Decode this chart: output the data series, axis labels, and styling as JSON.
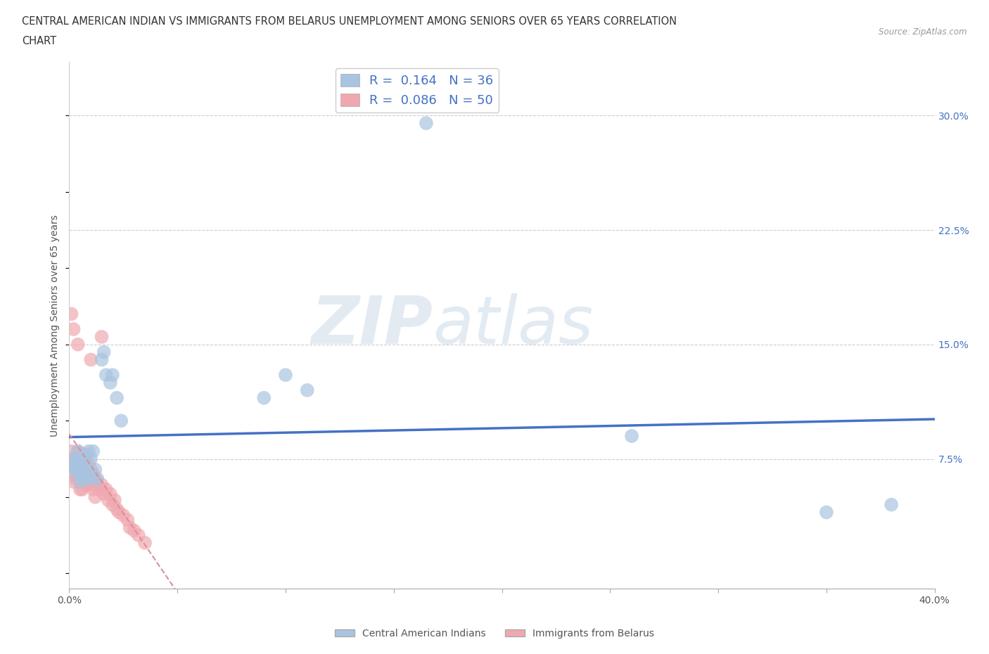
{
  "title_line1": "CENTRAL AMERICAN INDIAN VS IMMIGRANTS FROM BELARUS UNEMPLOYMENT AMONG SENIORS OVER 65 YEARS CORRELATION",
  "title_line2": "CHART",
  "source": "Source: ZipAtlas.com",
  "ylabel": "Unemployment Among Seniors over 65 years",
  "xlim": [
    0.0,
    0.4
  ],
  "ylim": [
    -0.01,
    0.335
  ],
  "xticks": [
    0.0,
    0.05,
    0.1,
    0.15,
    0.2,
    0.25,
    0.3,
    0.35,
    0.4
  ],
  "xticklabels_show": [
    "0.0%",
    "",
    "",
    "",
    "",
    "",
    "",
    "",
    "40.0%"
  ],
  "yticks": [
    0.0,
    0.075,
    0.15,
    0.225,
    0.3
  ],
  "yticklabels_right": [
    "",
    "7.5%",
    "15.0%",
    "22.5%",
    "30.0%"
  ],
  "blue_color": "#a8c4e0",
  "pink_color": "#f0a8b0",
  "blue_line_color": "#4472c4",
  "pink_line_color": "#d9909a",
  "watermark_zip": "ZIP",
  "watermark_atlas": "atlas",
  "legend_label1": "R =  0.164   N = 36",
  "legend_label2": "R =  0.086   N = 50",
  "blue_x": [
    0.001,
    0.002,
    0.003,
    0.003,
    0.004,
    0.004,
    0.005,
    0.005,
    0.005,
    0.006,
    0.006,
    0.007,
    0.007,
    0.008,
    0.008,
    0.009,
    0.009,
    0.01,
    0.01,
    0.011,
    0.012,
    0.013,
    0.015,
    0.016,
    0.017,
    0.019,
    0.02,
    0.022,
    0.024,
    0.09,
    0.1,
    0.11,
    0.26,
    0.35,
    0.38,
    0.165
  ],
  "blue_y": [
    0.07,
    0.075,
    0.072,
    0.068,
    0.08,
    0.065,
    0.075,
    0.068,
    0.06,
    0.072,
    0.065,
    0.075,
    0.062,
    0.078,
    0.065,
    0.08,
    0.068,
    0.075,
    0.062,
    0.08,
    0.068,
    0.062,
    0.14,
    0.145,
    0.13,
    0.125,
    0.13,
    0.115,
    0.1,
    0.115,
    0.13,
    0.12,
    0.09,
    0.04,
    0.045,
    0.295
  ],
  "pink_x": [
    0.001,
    0.001,
    0.002,
    0.002,
    0.003,
    0.003,
    0.003,
    0.004,
    0.004,
    0.004,
    0.005,
    0.005,
    0.005,
    0.006,
    0.006,
    0.006,
    0.007,
    0.007,
    0.008,
    0.008,
    0.009,
    0.009,
    0.01,
    0.01,
    0.011,
    0.011,
    0.012,
    0.012,
    0.013,
    0.014,
    0.015,
    0.016,
    0.017,
    0.018,
    0.019,
    0.02,
    0.021,
    0.022,
    0.023,
    0.025,
    0.027,
    0.028,
    0.03,
    0.032,
    0.035,
    0.001,
    0.002,
    0.004,
    0.01,
    0.015
  ],
  "pink_y": [
    0.08,
    0.075,
    0.065,
    0.06,
    0.072,
    0.068,
    0.062,
    0.08,
    0.075,
    0.068,
    0.072,
    0.065,
    0.055,
    0.078,
    0.068,
    0.055,
    0.075,
    0.062,
    0.07,
    0.058,
    0.072,
    0.06,
    0.068,
    0.058,
    0.065,
    0.055,
    0.062,
    0.05,
    0.06,
    0.055,
    0.058,
    0.052,
    0.055,
    0.048,
    0.052,
    0.045,
    0.048,
    0.042,
    0.04,
    0.038,
    0.035,
    0.03,
    0.028,
    0.025,
    0.02,
    0.17,
    0.16,
    0.15,
    0.14,
    0.155
  ]
}
